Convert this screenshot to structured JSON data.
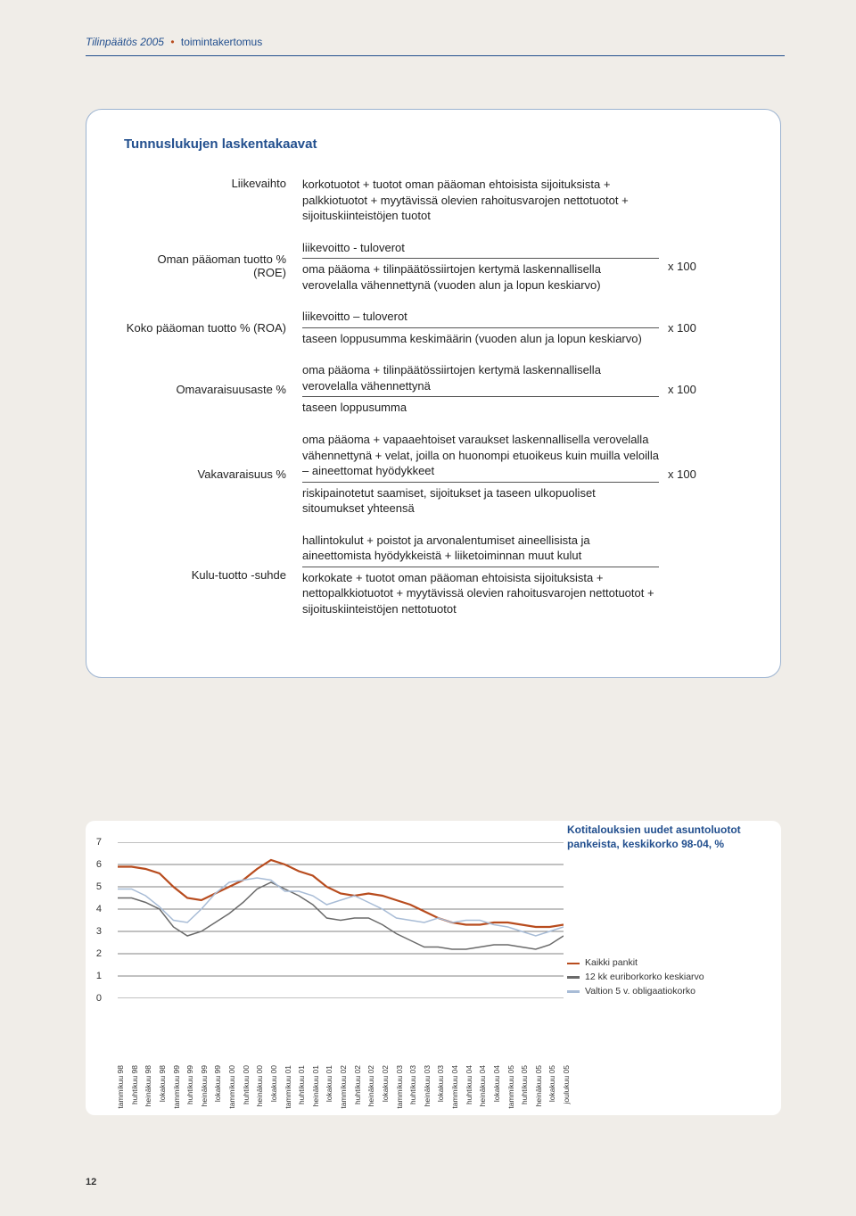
{
  "header": {
    "title": "Tilinpäätös 2005",
    "subtitle": "toimintakertomus"
  },
  "formulas": {
    "heading": "Tunnuslukujen laskentakaavat",
    "rows": [
      {
        "label": "Liikevaihto",
        "body_plain": "korkotuotot + tuotot oman pääoman ehtoisista sijoituksista + palkkiotuotot + myytävissä olevien rahoitusvarojen nettotuotot + sijoituskiinteistöjen tuotot",
        "mult": ""
      },
      {
        "label": "Oman pääoman tuotto % (ROE)",
        "top": "liikevoitto - tuloverot",
        "bot": "oma pääoma + tilinpäätössiirtojen kertymä laskennallisella verovelalla vähennettynä (vuoden alun ja lopun keskiarvo)",
        "mult": "x 100"
      },
      {
        "label": "Koko pääoman tuotto % (ROA)",
        "top": "liikevoitto – tuloverot",
        "bot": "taseen loppusumma keskimäärin (vuoden alun ja lopun keskiarvo)",
        "mult": "x 100"
      },
      {
        "label": "Omavaraisuusaste %",
        "top": "oma pääoma + tilinpäätössiirtojen kertymä laskennallisella verovelalla vähennettynä",
        "bot": "taseen loppusumma",
        "mult": "x 100"
      },
      {
        "label": "Vakavaraisuus %",
        "top": "oma pääoma + vapaaehtoiset varaukset laskennallisella verovelalla vähennettynä + velat, joilla on huonompi etuoikeus kuin muilla veloilla – aineettomat hyödykkeet",
        "bot": "riskipainotetut saamiset, sijoitukset ja taseen ulkopuoliset sitoumukset yhteensä",
        "mult": "x 100"
      },
      {
        "label": "Kulu-tuotto -suhde",
        "top": "hallintokulut + poistot ja arvonalentumiset aineellisista ja aineettomista hyödykkeistä + liiketoiminnan muut kulut",
        "bot": "korkokate + tuotot oman pääoman ehtoisista sijoituksista + nettopalkkiotuotot + myytävissä olevien rahoitusvarojen nettotuotot + sijoituskiinteistöjen nettotuotot",
        "mult": ""
      }
    ]
  },
  "chart": {
    "type": "line",
    "title_line1": "Kotitalouksien uudet asuntoluotot",
    "title_line2": "pankeista, keskikorko 98-04, %",
    "ylim": [
      0,
      7
    ],
    "ytick_step": 1,
    "grid_color": "#5a5a5a",
    "background_color": "#ffffff",
    "x_labels": [
      "tammikuu 98",
      "huhtikuu 98",
      "heinäkuu 98",
      "lokakuu 98",
      "tammikuu 99",
      "huhtikuu 99",
      "heinäkuu 99",
      "lokakuu 99",
      "tammikuu 00",
      "huhtikuu 00",
      "heinäkuu 00",
      "lokakuu 00",
      "tammikuu 01",
      "huhtikuu 01",
      "heinäkuu 01",
      "lokakuu 01",
      "tammikuu 02",
      "huhtikuu 02",
      "heinäkuu 02",
      "lokakuu 02",
      "tammikuu 03",
      "huhtikuu 03",
      "heinäkuu 03",
      "lokakuu 03",
      "tammikuu 04",
      "huhtikuu 04",
      "heinäkuu 04",
      "lokakuu 04",
      "tammikuu 05",
      "huhtikuu 05",
      "heinäkuu 05",
      "lokakuu 05",
      "joulukuu 05"
    ],
    "series": [
      {
        "name": "Kaikki pankit",
        "color": "#b84c1e",
        "line_width": 2.2,
        "values": [
          5.9,
          5.9,
          5.8,
          5.6,
          5.0,
          4.5,
          4.4,
          4.7,
          5.0,
          5.3,
          5.8,
          6.2,
          6.0,
          5.7,
          5.5,
          5.0,
          4.7,
          4.6,
          4.7,
          4.6,
          4.4,
          4.2,
          3.9,
          3.6,
          3.4,
          3.3,
          3.3,
          3.4,
          3.4,
          3.3,
          3.2,
          3.2,
          3.3
        ]
      },
      {
        "name": "12 kk euriborkorko keskiarvo",
        "color": "#6a6a6a",
        "line_width": 1.5,
        "values": [
          4.5,
          4.5,
          4.3,
          4.0,
          3.2,
          2.8,
          3.0,
          3.4,
          3.8,
          4.3,
          4.9,
          5.2,
          4.9,
          4.6,
          4.2,
          3.6,
          3.5,
          3.6,
          3.6,
          3.3,
          2.9,
          2.6,
          2.3,
          2.3,
          2.2,
          2.2,
          2.3,
          2.4,
          2.4,
          2.3,
          2.2,
          2.4,
          2.8
        ]
      },
      {
        "name": "Valtion 5 v. obligaatiokorko",
        "color": "#a8bcd6",
        "line_width": 1.5,
        "values": [
          4.9,
          4.9,
          4.6,
          4.1,
          3.5,
          3.4,
          4.0,
          4.7,
          5.2,
          5.3,
          5.4,
          5.3,
          4.8,
          4.8,
          4.6,
          4.2,
          4.4,
          4.6,
          4.3,
          4.0,
          3.6,
          3.5,
          3.4,
          3.6,
          3.4,
          3.5,
          3.5,
          3.3,
          3.2,
          3.0,
          2.8,
          3.0,
          3.2
        ]
      }
    ],
    "legend": [
      {
        "label": "Kaikki pankit",
        "color": "#b84c1e"
      },
      {
        "label": "12 kk euriborkorko keskiarvo",
        "color": "#6a6a6a"
      },
      {
        "label": "Valtion 5 v. obligaatiokorko",
        "color": "#a8bcd6"
      }
    ]
  },
  "page_number": "12"
}
